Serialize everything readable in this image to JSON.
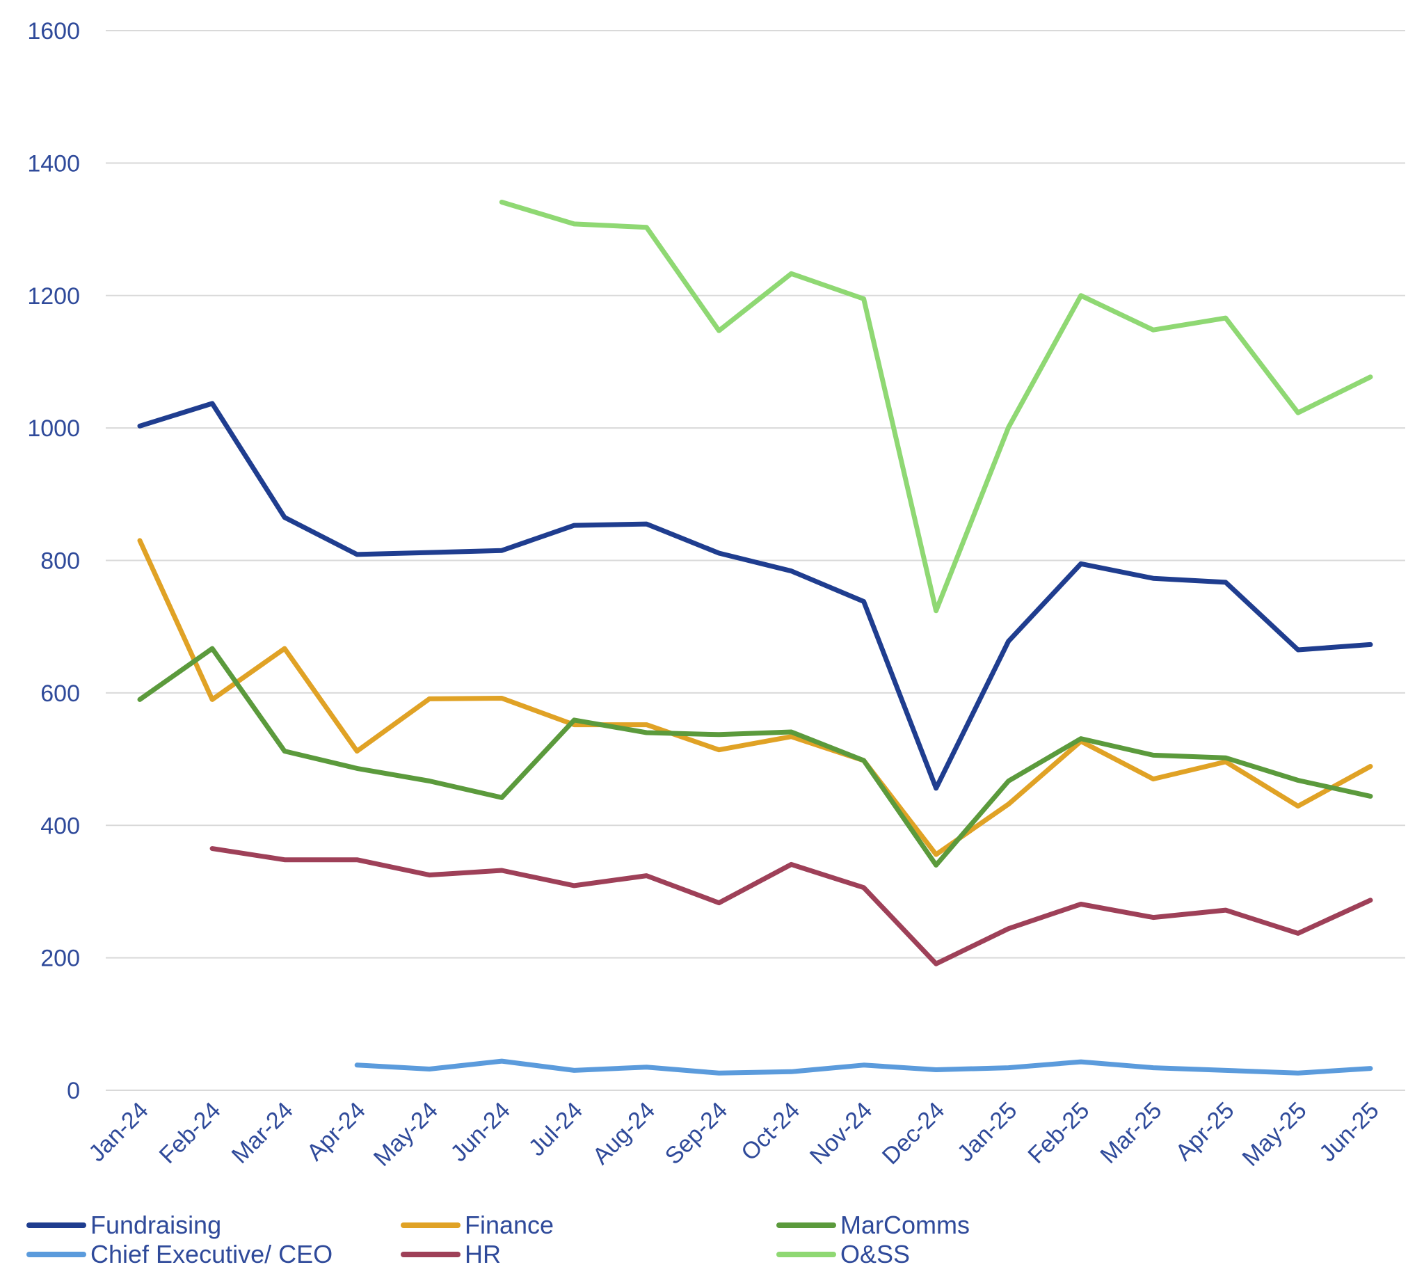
{
  "chart_data": {
    "type": "line",
    "title": "",
    "xlabel": "",
    "ylabel": "",
    "ylim": [
      0,
      1600
    ],
    "yticks": [
      0,
      200,
      400,
      600,
      800,
      1000,
      1200,
      1400,
      1600
    ],
    "grid": true,
    "legend_position": "bottom",
    "categories": [
      "Jan-24",
      "Feb-24",
      "Mar-24",
      "Apr-24",
      "May-24",
      "Jun-24",
      "Jul-24",
      "Aug-24",
      "Sep-24",
      "Oct-24",
      "Nov-24",
      "Dec-24",
      "Jan-25",
      "Feb-25",
      "Mar-25",
      "Apr-25",
      "May-25",
      "Jun-25"
    ],
    "series": [
      {
        "name": "Fundraising",
        "color": "#1f3d8f",
        "values": [
          1003,
          1037,
          865,
          809,
          812,
          815,
          853,
          855,
          811,
          784,
          738,
          456,
          678,
          795,
          773,
          767,
          665,
          673
        ]
      },
      {
        "name": "Finance",
        "color": "#e0a225",
        "values": [
          830,
          590,
          667,
          512,
          591,
          592,
          552,
          552,
          514,
          534,
          498,
          356,
          432,
          527,
          470,
          496,
          429,
          489
        ]
      },
      {
        "name": "MarComms",
        "color": "#5b9a3c",
        "values": [
          590,
          667,
          512,
          486,
          467,
          442,
          559,
          540,
          537,
          541,
          498,
          340,
          467,
          531,
          506,
          502,
          468,
          444
        ]
      },
      {
        "name": "Chief Executive/ CEO",
        "color": "#5b9bdc",
        "values": [
          null,
          null,
          null,
          38,
          32,
          44,
          30,
          35,
          26,
          28,
          38,
          31,
          34,
          43,
          34,
          30,
          26,
          33
        ]
      },
      {
        "name": "HR",
        "color": "#9e4058",
        "values": [
          null,
          365,
          348,
          348,
          325,
          332,
          309,
          324,
          283,
          341,
          306,
          191,
          244,
          281,
          261,
          272,
          237,
          287
        ]
      },
      {
        "name": "O&SS",
        "color": "#8fd873",
        "values": [
          null,
          null,
          null,
          null,
          null,
          1341,
          1308,
          1303,
          1147,
          1233,
          1195,
          724,
          1001,
          1200,
          1148,
          1166,
          1023,
          1077
        ]
      }
    ]
  }
}
